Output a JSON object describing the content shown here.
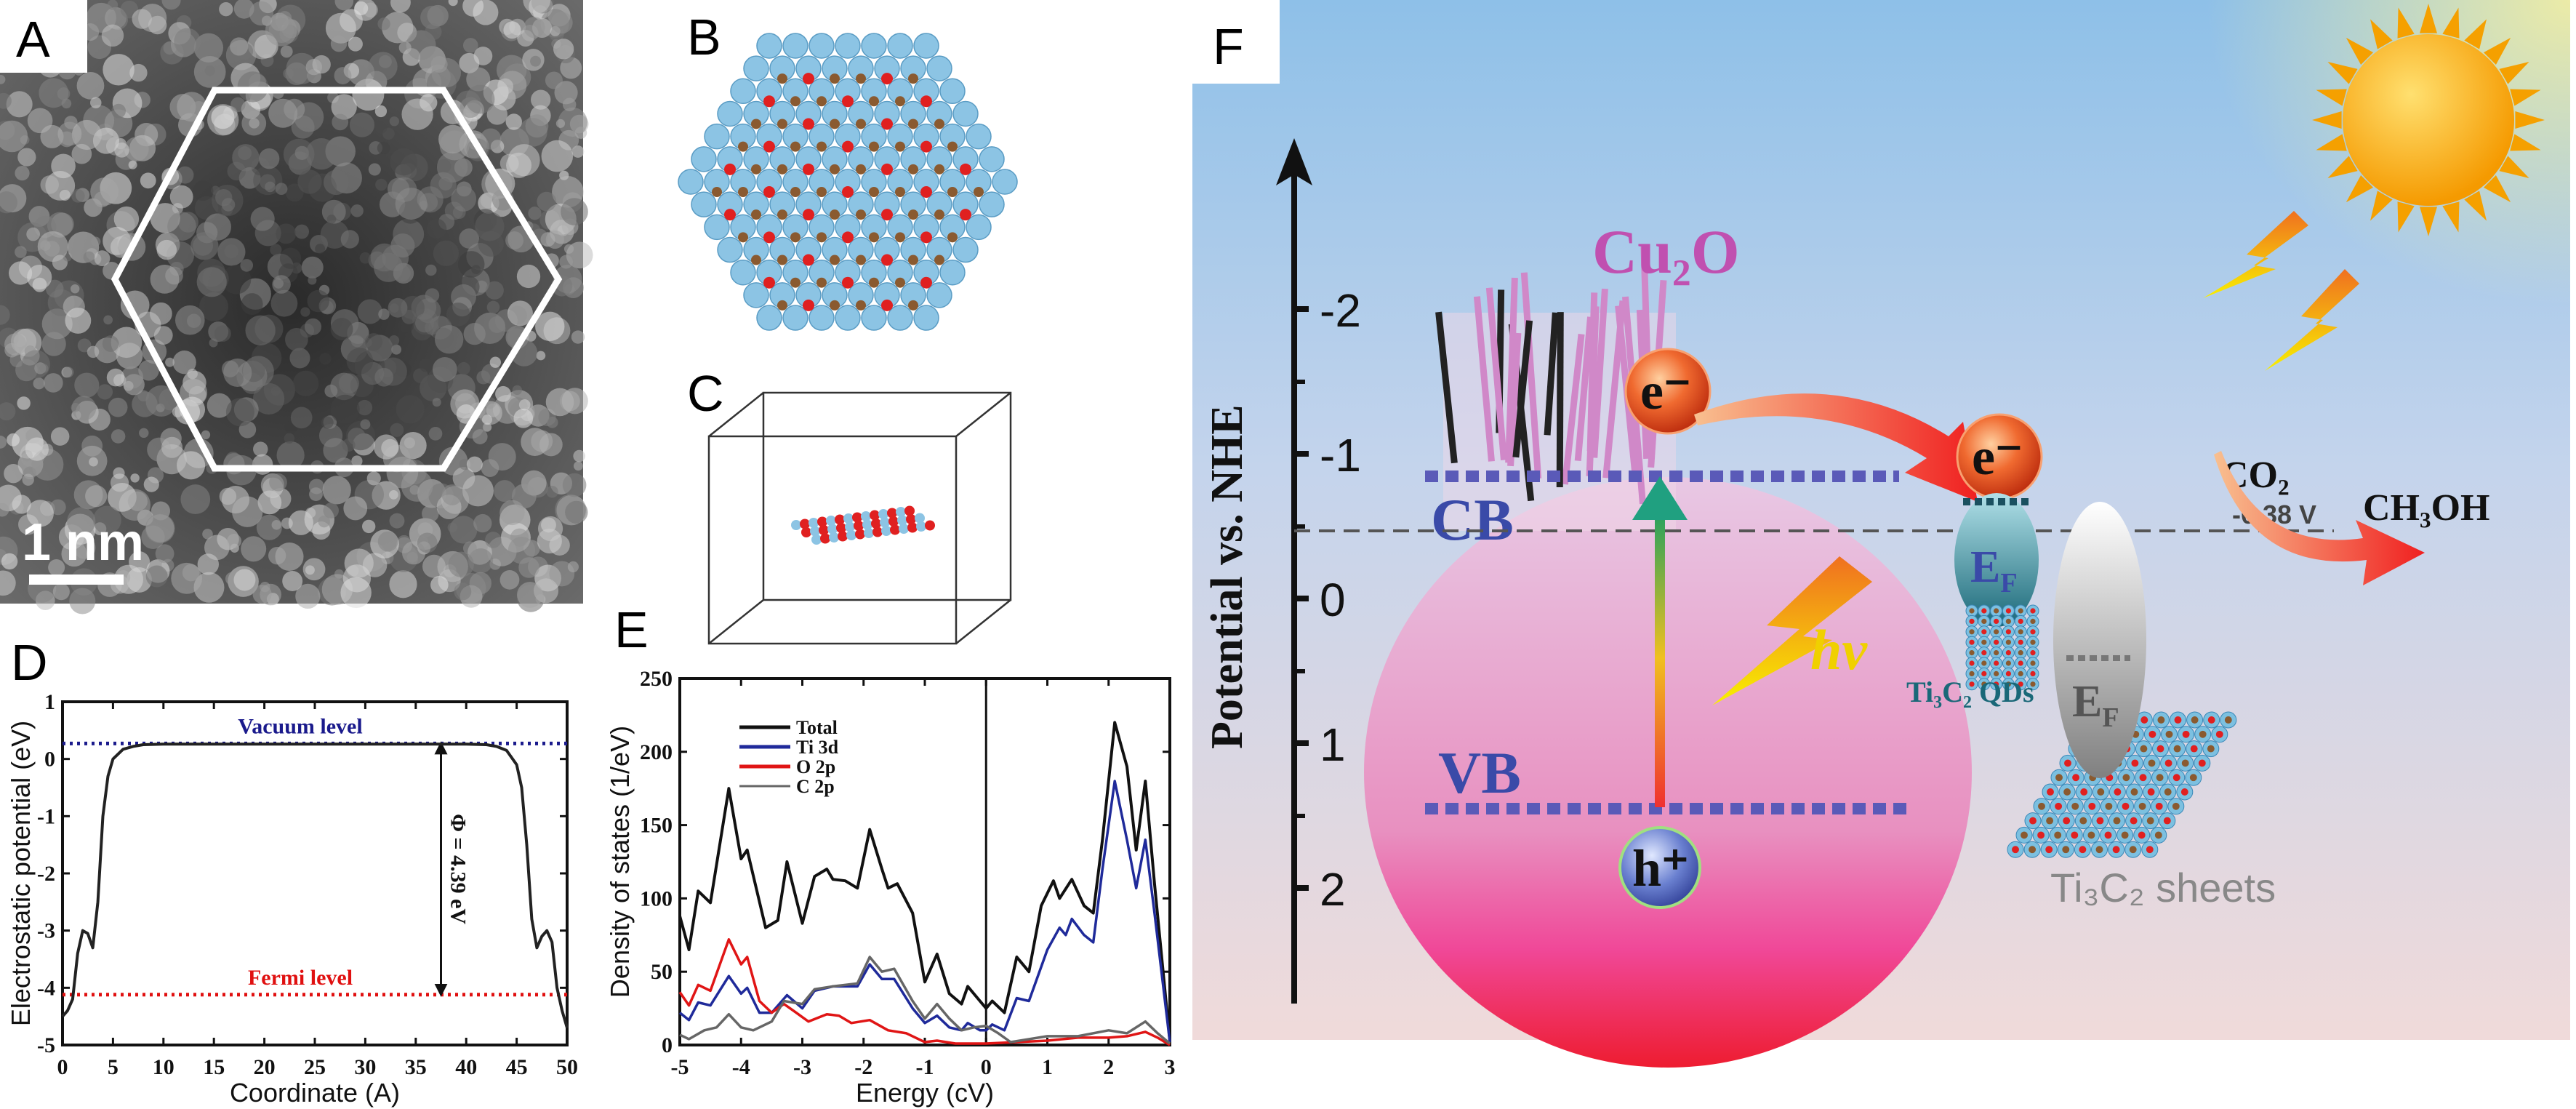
{
  "panels": {
    "a": {
      "letter": "A",
      "scale_bar": "1 nm"
    },
    "b": {
      "letter": "B"
    },
    "c": {
      "letter": "C"
    },
    "d": {
      "letter": "D"
    },
    "e": {
      "letter": "E"
    },
    "f": {
      "letter": "F"
    }
  },
  "chart_data": [
    {
      "id": "d",
      "type": "line",
      "xlabel": "Coordinate (A)",
      "ylabel": "Electrostatic potential (eV)",
      "xlim": [
        0,
        50
      ],
      "ylim": [
        -5,
        1
      ],
      "xticks": [
        "0",
        "5",
        "10",
        "15",
        "20",
        "25",
        "30",
        "35",
        "40",
        "45",
        "50"
      ],
      "yticks": [
        "-5",
        "-4",
        "-3",
        "-2",
        "-1",
        "0",
        "1"
      ],
      "grid": false,
      "series": [
        {
          "color": "#222222",
          "x": [
            0,
            0.5,
            1,
            1.5,
            2,
            2.5,
            3,
            3.5,
            4,
            4.5,
            5,
            6,
            7,
            8,
            10,
            20,
            30,
            40,
            42,
            43,
            44,
            45,
            45.5,
            46,
            46.5,
            47,
            47.5,
            48,
            48.5,
            49,
            49.5,
            50
          ],
          "y": [
            -4.5,
            -4.4,
            -4.2,
            -3.4,
            -3.0,
            -3.05,
            -3.3,
            -2.5,
            -1.0,
            -0.3,
            0.0,
            0.17,
            0.22,
            0.25,
            0.26,
            0.26,
            0.26,
            0.26,
            0.25,
            0.22,
            0.15,
            -0.1,
            -0.5,
            -1.5,
            -2.8,
            -3.3,
            -3.1,
            -3.0,
            -3.2,
            -4.0,
            -4.4,
            -4.7
          ]
        }
      ],
      "reference_lines": [
        {
          "label": "Vacuum level",
          "y": 0.27,
          "color": "#1a1a8c"
        },
        {
          "label": "Fermi level",
          "y": -4.12,
          "color": "#e01010"
        }
      ],
      "annotation": {
        "label": "Φ = 4.39 eV",
        "x": 37.5,
        "from": 0.27,
        "to": -4.12
      }
    },
    {
      "id": "e",
      "type": "line",
      "xlabel": "Energy (cV)",
      "ylabel": "Density of states (1/eV)",
      "xlim": [
        -5,
        3
      ],
      "ylim": [
        0,
        250
      ],
      "xticks": [
        "-5",
        "-4",
        "-3",
        "-2",
        "-1",
        "0",
        "1",
        "2",
        "3"
      ],
      "yticks": [
        "0",
        "50",
        "100",
        "150",
        "200",
        "250"
      ],
      "grid": false,
      "legend_position": "top-left",
      "zero_line_x": 0,
      "series": [
        {
          "name": "Total",
          "color": "#111111",
          "x": [
            -5,
            -4.85,
            -4.7,
            -4.5,
            -4.2,
            -4,
            -3.9,
            -3.6,
            -3.4,
            -3.25,
            -3,
            -2.8,
            -2.6,
            -2.5,
            -2.3,
            -2.1,
            -1.9,
            -1.7,
            -1.6,
            -1.45,
            -1.2,
            -1,
            -0.8,
            -0.6,
            -0.4,
            -0.3,
            -0.1,
            0,
            0.1,
            0.3,
            0.5,
            0.7,
            0.9,
            1.1,
            1.2,
            1.4,
            1.6,
            1.75,
            1.9,
            2.1,
            2.3,
            2.45,
            2.6,
            2.75,
            3
          ],
          "y": [
            88,
            65,
            105,
            97,
            175,
            127,
            133,
            80,
            85,
            125,
            83,
            115,
            120,
            113,
            112,
            107,
            147,
            120,
            107,
            110,
            90,
            43,
            62,
            35,
            28,
            40,
            30,
            25,
            30,
            22,
            60,
            50,
            95,
            112,
            100,
            113,
            95,
            90,
            140,
            220,
            190,
            133,
            180,
            110,
            3
          ]
        },
        {
          "name": "Ti 3d",
          "color": "#1f2a9a",
          "x": [
            -5,
            -4.85,
            -4.7,
            -4.5,
            -4.2,
            -4,
            -3.9,
            -3.7,
            -3.5,
            -3.25,
            -3,
            -2.8,
            -2.5,
            -2.1,
            -1.9,
            -1.7,
            -1.5,
            -1.2,
            -1,
            -0.8,
            -0.6,
            -0.4,
            -0.3,
            -0.1,
            0,
            0.1,
            0.3,
            0.5,
            0.7,
            1,
            1.2,
            1.3,
            1.4,
            1.6,
            1.75,
            1.9,
            2.1,
            2.3,
            2.45,
            2.6,
            2.75,
            3
          ],
          "y": [
            22,
            17,
            29,
            27,
            47,
            35,
            39,
            22,
            22,
            34,
            25,
            37,
            40,
            40,
            55,
            45,
            45,
            25,
            15,
            20,
            12,
            10,
            15,
            10,
            10,
            14,
            10,
            32,
            30,
            65,
            80,
            75,
            86,
            75,
            70,
            120,
            180,
            140,
            107,
            140,
            90,
            2
          ]
        },
        {
          "name": "O 2p",
          "color": "#e01515",
          "x": [
            -5,
            -4.85,
            -4.7,
            -4.5,
            -4.2,
            -4,
            -3.9,
            -3.7,
            -3.5,
            -3.3,
            -3.1,
            -2.9,
            -2.6,
            -2.4,
            -2.2,
            -1.9,
            -1.6,
            -1.3,
            -1,
            -0.8,
            -0.5,
            0,
            0.5,
            1,
            1.5,
            2,
            2.3,
            2.6,
            2.8,
            3
          ],
          "y": [
            36,
            27,
            41,
            37,
            72,
            55,
            60,
            30,
            22,
            28,
            22,
            16,
            21,
            20,
            15,
            17,
            10,
            8,
            2,
            3,
            1,
            1,
            2,
            3,
            5,
            5,
            6,
            9,
            5,
            0
          ]
        },
        {
          "name": "C 2p",
          "color": "#666666",
          "x": [
            -5,
            -4.85,
            -4.6,
            -4.4,
            -4.2,
            -4,
            -3.8,
            -3.5,
            -3.3,
            -3,
            -2.8,
            -2.5,
            -2.1,
            -1.9,
            -1.7,
            -1.5,
            -1.2,
            -1,
            -0.8,
            -0.6,
            -0.4,
            -0.2,
            0,
            0.2,
            0.4,
            1,
            1.5,
            2,
            2.3,
            2.6,
            2.8,
            3
          ],
          "y": [
            7,
            4,
            10,
            12,
            21,
            12,
            10,
            16,
            30,
            28,
            38,
            40,
            42,
            60,
            50,
            52,
            30,
            18,
            28,
            18,
            10,
            12,
            13,
            8,
            2,
            6,
            6,
            10,
            8,
            16,
            8,
            1
          ]
        }
      ]
    }
  ],
  "diagram_f": {
    "axis_label": "Potential vs. NHE",
    "axis_ticks": [
      "-2",
      "-1",
      "0",
      "1",
      "2"
    ],
    "semiconductor": "Cu₂O",
    "cb": "CB",
    "vb": "VB",
    "electron": "e⁻",
    "hole": "h⁺",
    "light": "hv",
    "fermi": "E",
    "fermi_sub": "F",
    "qds": "Ti₃C₂ QDs",
    "sheets": "Ti₃C₂ sheets",
    "reactant": "CO₂",
    "product": "CH₃OH",
    "potential": "-0.38 V",
    "colors": {
      "cb_vb": "#5a5ab8",
      "circle_top": "#e8b8dc",
      "circle_bottom": "#ee2040",
      "label_blue": "#3a4aa8",
      "cu2o": "#c050b0",
      "hv": "#f0d000"
    }
  }
}
